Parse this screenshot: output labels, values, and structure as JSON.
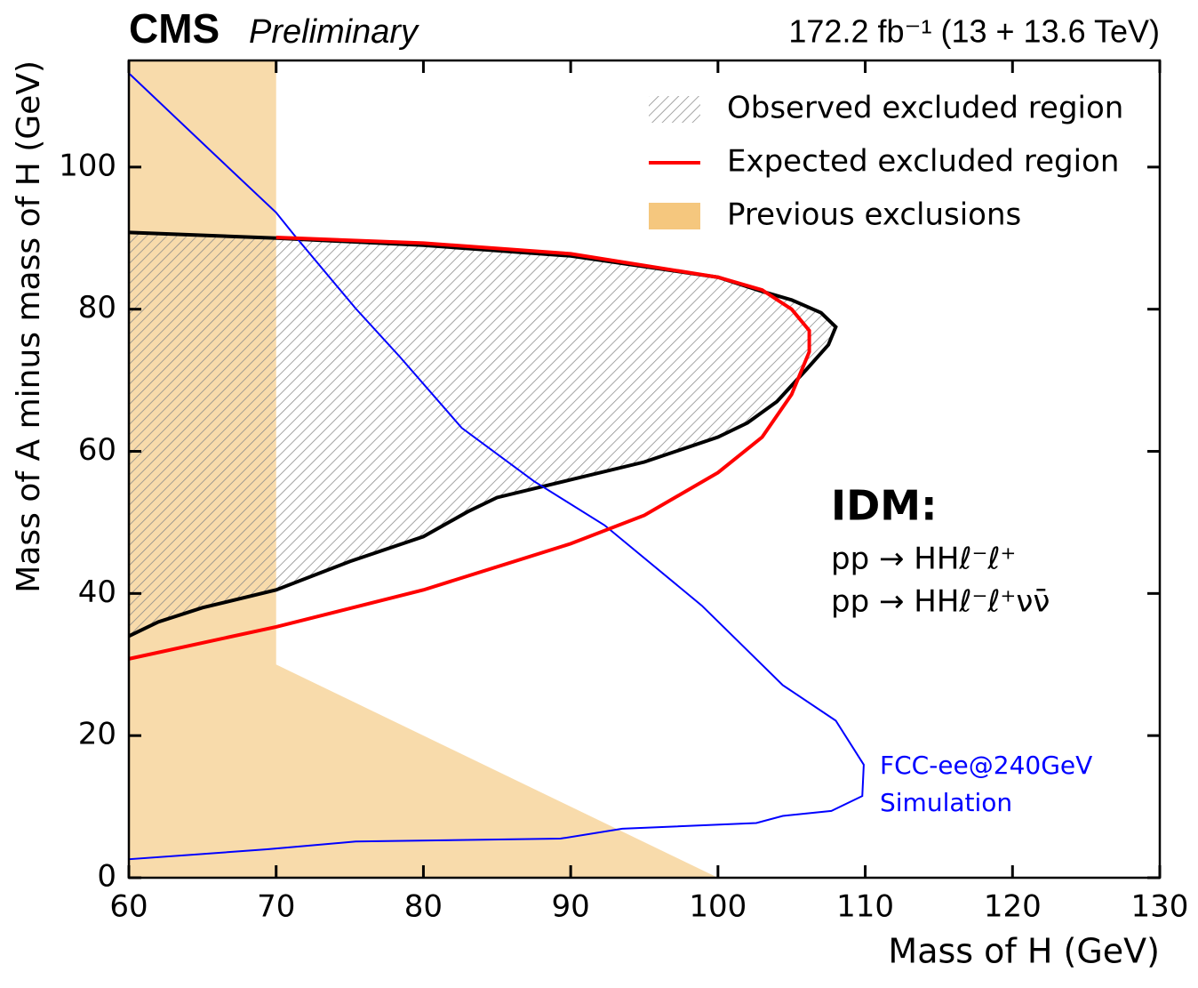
{
  "chart_data": {
    "type": "contour",
    "experiment": "CMS",
    "status": "Preliminary",
    "luminosity": "172.2 fb⁻¹ (13 + 13.6 TeV)",
    "x_label": "Mass of H (GeV)",
    "y_label": "Mass of A minus mass of H (GeV)",
    "xlim": [
      60,
      130
    ],
    "ylim": [
      0,
      115
    ],
    "xticks": [
      60,
      70,
      80,
      90,
      100,
      110,
      120,
      130
    ],
    "yticks": [
      0,
      20,
      40,
      60,
      80,
      100
    ],
    "legend": "top-right",
    "series": [
      {
        "name": "Observed excluded region",
        "style": "hatched",
        "color": "#000000",
        "x": [
          60,
          70,
          80,
          90,
          100,
          103,
          105,
          107,
          108,
          107.5,
          106,
          104,
          102,
          100,
          95,
          90,
          85,
          83,
          80,
          75,
          70,
          65,
          62,
          60
        ],
        "y": [
          90.8,
          90.0,
          89.0,
          87.5,
          84.5,
          82.5,
          81.3,
          79.5,
          77.5,
          75.0,
          71.5,
          67.0,
          64.0,
          62.0,
          58.5,
          56.0,
          53.5,
          51.5,
          48.0,
          44.5,
          40.5,
          38.0,
          36.0,
          34.0
        ]
      },
      {
        "name": "Expected excluded region",
        "style": "line",
        "color": "#ff0000",
        "x": [
          60,
          70,
          80,
          90,
          95,
          100,
          103,
          105,
          106.2,
          106.2,
          105,
          103,
          100,
          90,
          80,
          70
        ],
        "y": [
          30.8,
          35.3,
          40.5,
          47.0,
          51.0,
          57.0,
          62.0,
          68.0,
          74.0,
          77.0,
          80.0,
          82.7,
          84.5,
          87.8,
          89.3,
          90.1
        ]
      },
      {
        "name": "Previous exclusions",
        "style": "filled",
        "color": "#f5c77e",
        "x": [
          60,
          60,
          70,
          70,
          100
        ],
        "y": [
          0,
          115,
          115,
          30,
          0
        ]
      },
      {
        "style": "thin-line",
        "color": "#0000ff",
        "x": [
          60,
          65.7,
          70,
          71.2,
          75.4,
          78.4,
          82.6,
          87.5,
          92.3,
          98.9,
          104.4,
          108,
          109.9,
          109.8,
          107.7,
          104.4,
          102.6,
          93.5,
          89.3,
          75.4,
          69.4,
          60
        ],
        "y": [
          113.2,
          102,
          93.6,
          90.5,
          80.1,
          73.3,
          63.3,
          55.8,
          49.6,
          38.3,
          27.1,
          22.1,
          15.9,
          11.5,
          9.4,
          8.7,
          7.7,
          6.9,
          5.5,
          5.1,
          4.0,
          2.6
        ]
      }
    ],
    "annotations": [
      "IDM:",
      "pp → HHℓ⁻ℓ⁺",
      "pp → HHℓ⁻ℓ⁺νν̄",
      "FCC-ee@240GeV",
      "Simulation"
    ]
  }
}
